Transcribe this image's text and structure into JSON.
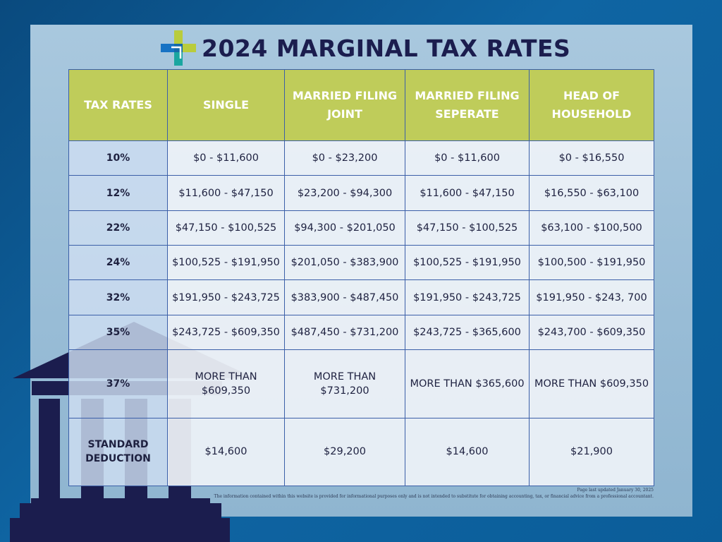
{
  "page": {
    "title": "2024 MARGINAL TAX RATES",
    "colors": {
      "background": "#0f65a3",
      "panel": "#a9c8de",
      "header_cell": "#bfcc5a",
      "rate_cell": "#cedef2",
      "body_cell": "#eef2f7",
      "title_text": "#1b1d4e",
      "logo_green": "#b9cc3c",
      "logo_blue": "#1873c4",
      "logo_teal": "#1aa6a0",
      "temple": "#1b1d4e"
    },
    "icons": [
      "cross-logo-icon",
      "temple-icon"
    ]
  },
  "table": {
    "headers": [
      "TAX RATES",
      "SINGLE",
      "MARRIED FILING JOINT",
      "MARRIED FILING SEPERATE",
      "HEAD OF HOUSEHOLD"
    ],
    "rows": [
      {
        "rate": "10%",
        "single": "$0 - $11,600",
        "joint": "$0 - $23,200",
        "separate": "$0 - $11,600",
        "household": "$0 - $16,550"
      },
      {
        "rate": "12%",
        "single": "$11,600 - $47,150",
        "joint": "$23,200 - $94,300",
        "separate": "$11,600 - $47,150",
        "household": "$16,550 - $63,100"
      },
      {
        "rate": "22%",
        "single": "$47,150 - $100,525",
        "joint": "$94,300 - $201,050",
        "separate": "$47,150 - $100,525",
        "household": "$63,100 - $100,500"
      },
      {
        "rate": "24%",
        "single": "$100,525 - $191,950",
        "joint": "$201,050 - $383,900",
        "separate": "$100,525 - $191,950",
        "household": "$100,500 - $191,950"
      },
      {
        "rate": "32%",
        "single": "$191,950 - $243,725",
        "joint": "$383,900 - $487,450",
        "separate": "$191,950 - $243,725",
        "household": "$191,950 - $243, 700"
      },
      {
        "rate": "35%",
        "single": "$243,725 - $609,350",
        "joint": "$487,450 - $731,200",
        "separate": "$243,725 - $365,600",
        "household": "$243,700 - $609,350"
      },
      {
        "rate": "37%",
        "single": "MORE THAN $609,350",
        "joint": "MORE THAN $731,200",
        "separate": "MORE THAN $365,600",
        "household": "MORE THAN $609,350"
      },
      {
        "rate": "STANDARD DEDUCTION",
        "single": "$14,600",
        "joint": "$29,200",
        "separate": "$14,600",
        "household": "$21,900"
      }
    ]
  },
  "footer": {
    "updated": "Page last updated January 30, 2025",
    "disclaimer": "The information contained within this website is provided for informational purposes only and is not intended to substitute for obtaining accounting, tax, or financial advice from a professional accountant."
  }
}
